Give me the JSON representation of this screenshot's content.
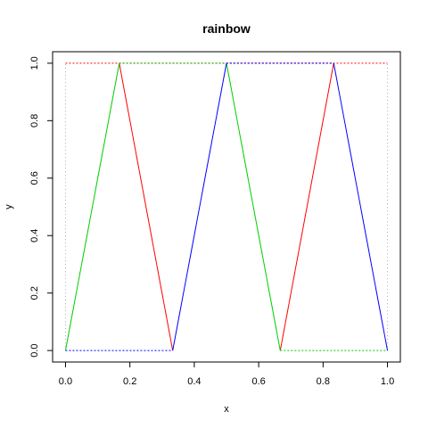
{
  "chart_data": {
    "type": "line",
    "title": "rainbow",
    "xlabel": "x",
    "ylabel": "y",
    "xlim": [
      -0.04,
      1.04
    ],
    "ylim": [
      -0.04,
      1.04
    ],
    "xticks": [
      "0.0",
      "0.2",
      "0.4",
      "0.6",
      "0.8",
      "1.0"
    ],
    "yticks": [
      "0.0",
      "0.2",
      "0.4",
      "0.6",
      "0.8",
      "1.0"
    ],
    "grid": false,
    "legend": "none",
    "series": [
      {
        "color": "#ff0000",
        "segments": [
          [
            [
              0.167,
              1.0
            ],
            [
              0.333,
              0.0
            ]
          ],
          [
            [
              0.667,
              0.0
            ],
            [
              0.833,
              1.0
            ]
          ],
          [
            [
              0.0,
              1.0
            ],
            [
              1.0,
              1.0
            ]
          ]
        ]
      },
      {
        "color": "#00cc00",
        "segments": [
          [
            [
              0.0,
              0.0
            ],
            [
              0.167,
              1.0
            ]
          ],
          [
            [
              0.167,
              1.0
            ],
            [
              0.5,
              1.0
            ]
          ],
          [
            [
              0.5,
              1.0
            ],
            [
              0.667,
              0.0
            ]
          ],
          [
            [
              0.667,
              0.0
            ],
            [
              1.0,
              0.0
            ]
          ]
        ]
      },
      {
        "color": "#0000ff",
        "segments": [
          [
            [
              0.333,
              0.0
            ],
            [
              0.5,
              1.0
            ]
          ],
          [
            [
              0.833,
              1.0
            ],
            [
              1.0,
              0.0
            ]
          ],
          [
            [
              0.0,
              0.0
            ],
            [
              0.333,
              0.0
            ]
          ],
          [
            [
              0.5,
              1.0
            ],
            [
              0.833,
              1.0
            ]
          ]
        ]
      }
    ],
    "guides": [
      {
        "color": "#aaaaaa",
        "x": 0.0
      },
      {
        "color": "#aaaaaa",
        "x": 1.0
      }
    ]
  }
}
